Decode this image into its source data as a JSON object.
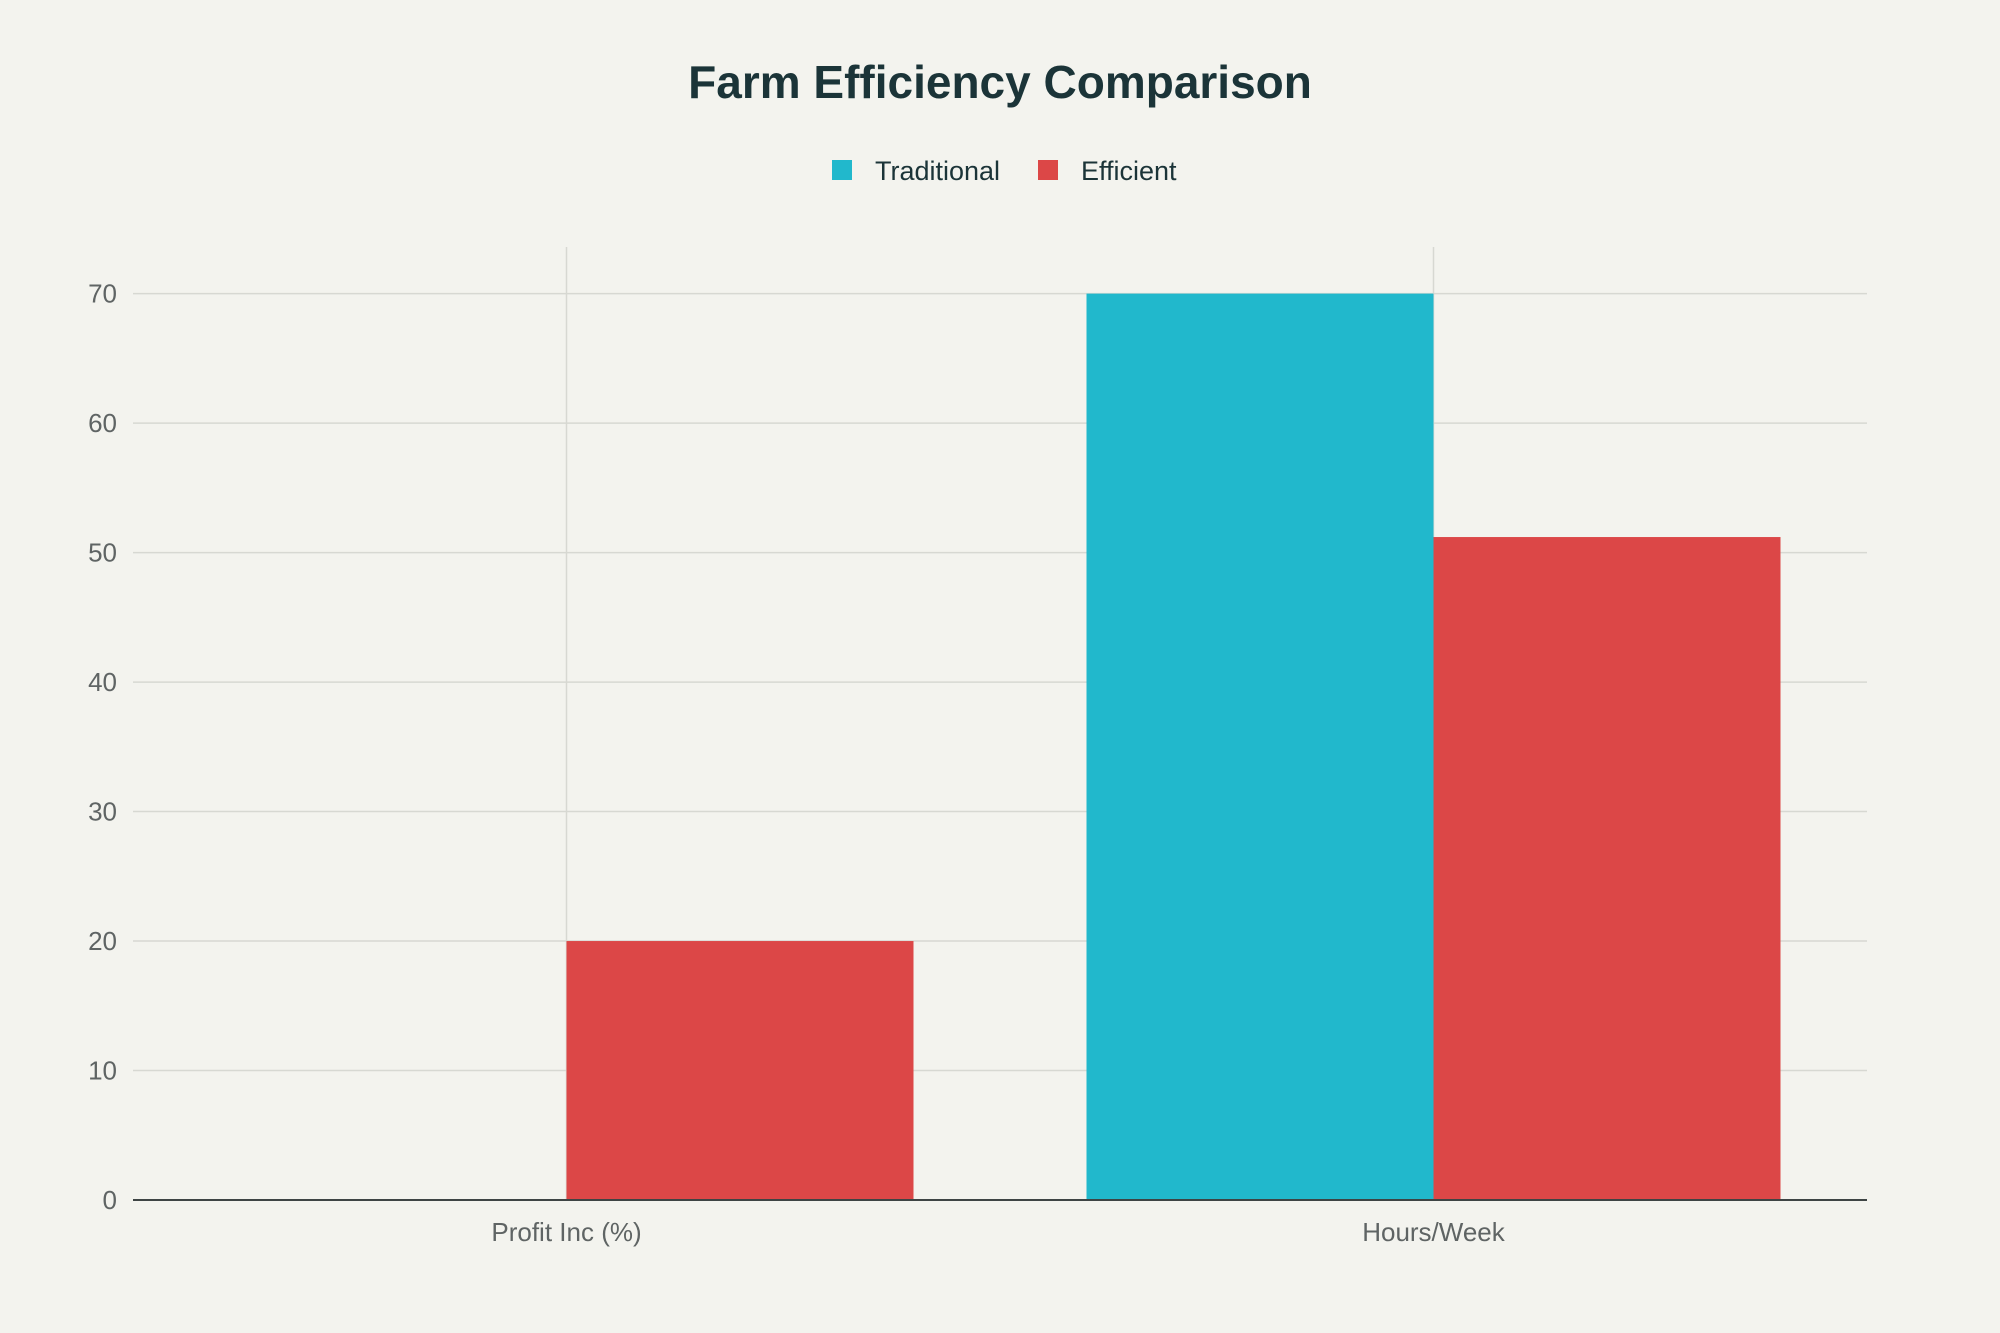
{
  "chart_data": {
    "type": "bar",
    "title": "Farm Efficiency Comparison",
    "xlabel": "",
    "ylabel": "",
    "categories": [
      "Profit Inc (%)",
      "Hours/Week"
    ],
    "series": [
      {
        "name": "Traditional",
        "color": "#21b8cc",
        "values": [
          0,
          70
        ]
      },
      {
        "name": "Efficient",
        "color": "#dc4747",
        "values": [
          20,
          51.2
        ]
      }
    ],
    "ylim": [
      0,
      73.6
    ],
    "yticks": [
      0,
      10,
      20,
      30,
      40,
      50,
      60,
      70
    ],
    "grid": true,
    "legend": "top-center"
  }
}
